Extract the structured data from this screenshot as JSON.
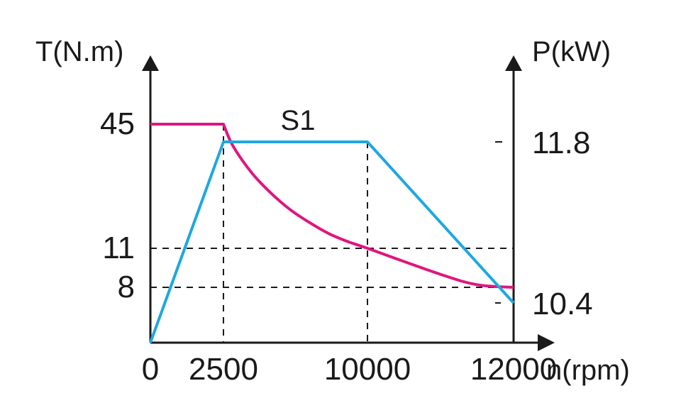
{
  "chart_data": {
    "type": "line",
    "title": "",
    "xlabel": "n(rpm)",
    "ylabel_left": "T(N.m)",
    "ylabel_right": "P(kW)",
    "x_ticks": [
      "0",
      "2500",
      "10000",
      "12000"
    ],
    "y_left_ticks": [
      "45",
      "11",
      "8"
    ],
    "y_right_ticks": [
      "11.8",
      "10.4"
    ],
    "series_label": "S1",
    "grid": false,
    "colors": {
      "torque": "#e0157f",
      "power": "#1ea7e1",
      "axis": "#1a1a1a"
    },
    "series": [
      {
        "axis": "left",
        "x": [
          0,
          2500,
          3000,
          4000,
          5000,
          6000,
          7000,
          8000,
          9000,
          10000,
          11000,
          11500,
          12000
        ],
        "values": [
          45,
          45,
          39,
          31.5,
          26,
          21.5,
          18,
          15,
          12.8,
          11,
          9,
          8.2,
          8
        ]
      },
      {
        "axis": "right",
        "x": [
          0,
          2500,
          10000,
          12000
        ],
        "values": [
          0,
          11.8,
          11.8,
          10.4
        ]
      }
    ]
  }
}
